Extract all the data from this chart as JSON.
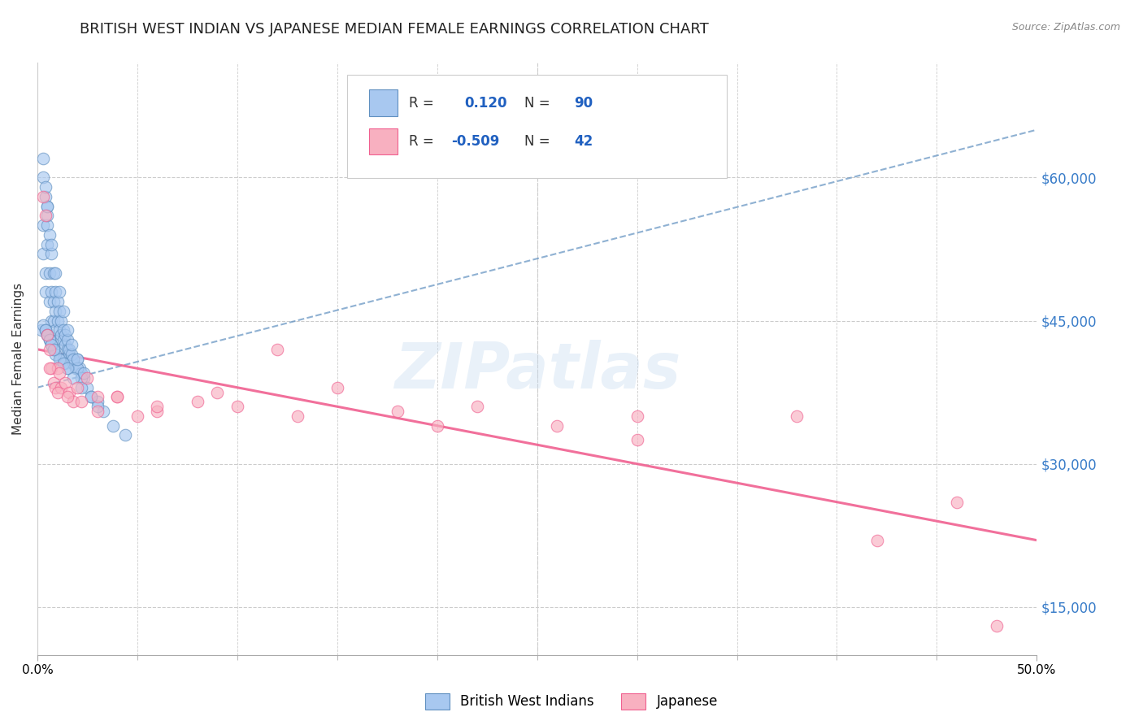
{
  "title": "BRITISH WEST INDIAN VS JAPANESE MEDIAN FEMALE EARNINGS CORRELATION CHART",
  "source_text": "Source: ZipAtlas.com",
  "ylabel": "Median Female Earnings",
  "xlim": [
    0.0,
    0.5
  ],
  "ylim": [
    0,
    75000
  ],
  "plot_ylim": [
    20000,
    65000
  ],
  "xtick_labels": [
    "0.0%",
    "",
    "",
    "",
    "",
    "",
    "",
    "",
    "",
    "50.0%"
  ],
  "xtick_vals": [
    0.0,
    0.05,
    0.1,
    0.15,
    0.2,
    0.25,
    0.3,
    0.35,
    0.4,
    0.5
  ],
  "ytick_labels": [
    "$15,000",
    "$30,000",
    "$45,000",
    "$60,000"
  ],
  "ytick_vals": [
    15000,
    30000,
    45000,
    60000
  ],
  "watermark": "ZIPatlas",
  "color_bwi": "#a8c8f0",
  "color_jap": "#f8b0c0",
  "trendline_color_bwi": "#6090c0",
  "trendline_color_jap": "#f06090",
  "background_color": "#ffffff",
  "grid_color": "#cccccc",
  "title_fontsize": 13,
  "axis_fontsize": 11,
  "tick_fontsize": 11,
  "bwi_trend_x0": 0.0,
  "bwi_trend_y0": 38000,
  "bwi_trend_x1": 0.5,
  "bwi_trend_y1": 65000,
  "jap_trend_x0": 0.0,
  "jap_trend_y0": 42000,
  "jap_trend_x1": 0.5,
  "jap_trend_y1": 22000,
  "bwi_points_x": [
    0.002,
    0.003,
    0.003,
    0.004,
    0.004,
    0.005,
    0.005,
    0.005,
    0.006,
    0.006,
    0.007,
    0.007,
    0.008,
    0.008,
    0.009,
    0.009,
    0.01,
    0.01,
    0.011,
    0.011,
    0.012,
    0.012,
    0.013,
    0.013,
    0.014,
    0.014,
    0.015,
    0.015,
    0.016,
    0.017,
    0.018,
    0.019,
    0.02,
    0.021,
    0.022,
    0.023,
    0.025,
    0.027,
    0.03,
    0.033,
    0.038,
    0.044,
    0.003,
    0.004,
    0.005,
    0.006,
    0.007,
    0.008,
    0.009,
    0.01,
    0.011,
    0.012,
    0.013,
    0.014,
    0.015,
    0.016,
    0.017,
    0.018,
    0.02,
    0.022,
    0.003,
    0.004,
    0.005,
    0.007,
    0.009,
    0.011,
    0.013,
    0.015,
    0.017,
    0.02,
    0.023,
    0.003,
    0.004,
    0.005,
    0.006,
    0.007,
    0.008,
    0.009,
    0.011,
    0.013,
    0.015,
    0.018,
    0.022,
    0.027,
    0.03,
    0.004,
    0.005,
    0.006,
    0.007,
    0.008
  ],
  "bwi_points_y": [
    44000,
    55000,
    52000,
    50000,
    48000,
    57000,
    55000,
    53000,
    50000,
    47000,
    48000,
    45000,
    47000,
    45000,
    46000,
    44000,
    45000,
    43000,
    44000,
    42000,
    43500,
    41000,
    43000,
    41000,
    42500,
    40500,
    42000,
    40000,
    41500,
    41000,
    40500,
    40000,
    41000,
    40000,
    39500,
    39000,
    38000,
    37000,
    36500,
    35500,
    34000,
    33000,
    60000,
    58000,
    56000,
    54000,
    52000,
    50000,
    48000,
    47000,
    46000,
    45000,
    44000,
    43500,
    43000,
    42000,
    41500,
    41000,
    40000,
    39000,
    62000,
    59000,
    57000,
    53000,
    50000,
    48000,
    46000,
    44000,
    42500,
    41000,
    39500,
    44500,
    44000,
    43500,
    43000,
    42500,
    42000,
    41500,
    41000,
    40500,
    40000,
    39000,
    38000,
    37000,
    36000,
    44000,
    43500,
    43000,
    42500,
    42000
  ],
  "jap_points_x": [
    0.003,
    0.004,
    0.005,
    0.006,
    0.007,
    0.008,
    0.009,
    0.01,
    0.011,
    0.012,
    0.014,
    0.016,
    0.018,
    0.02,
    0.025,
    0.03,
    0.04,
    0.05,
    0.06,
    0.08,
    0.1,
    0.12,
    0.15,
    0.18,
    0.22,
    0.26,
    0.3,
    0.38,
    0.46,
    0.006,
    0.01,
    0.015,
    0.022,
    0.03,
    0.04,
    0.06,
    0.09,
    0.13,
    0.2,
    0.3,
    0.42,
    0.48
  ],
  "jap_points_y": [
    58000,
    56000,
    43500,
    42000,
    40000,
    38500,
    38000,
    40000,
    39500,
    38000,
    38500,
    37500,
    36500,
    38000,
    39000,
    37000,
    37000,
    35000,
    35500,
    36500,
    36000,
    42000,
    38000,
    35500,
    36000,
    34000,
    35000,
    35000,
    26000,
    40000,
    37500,
    37000,
    36500,
    35500,
    37000,
    36000,
    37500,
    35000,
    34000,
    32500,
    22000,
    13000
  ]
}
